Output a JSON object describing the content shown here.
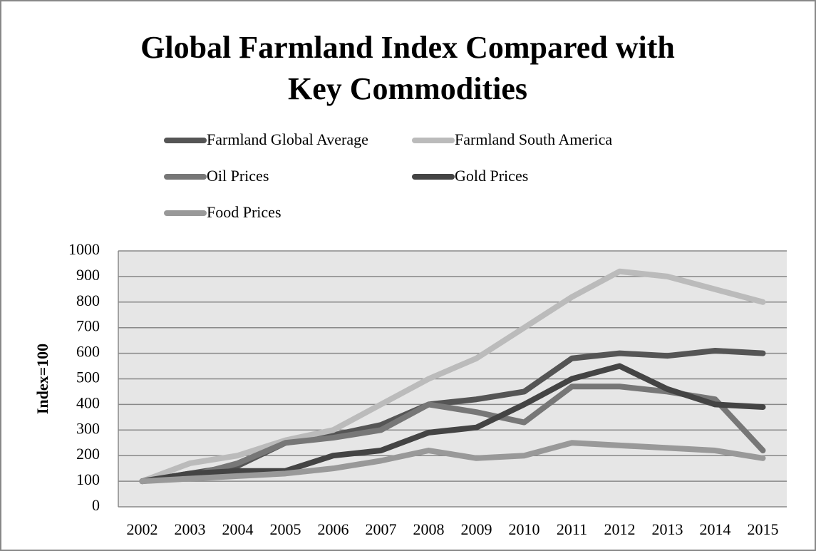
{
  "chart_data": {
    "type": "line",
    "title": "Global Farmland Index Compared with Key Commodities",
    "y_label": "Index=100",
    "categories": [
      "2002",
      "2003",
      "2004",
      "2005",
      "2006",
      "2007",
      "2008",
      "2009",
      "2010",
      "2011",
      "2012",
      "2013",
      "2014",
      "2015"
    ],
    "series": [
      {
        "name": "Farmland Global Average",
        "color": "#555555",
        "values": [
          100,
          130,
          160,
          250,
          280,
          320,
          400,
          420,
          450,
          580,
          600,
          590,
          610,
          600
        ]
      },
      {
        "name": "Farmland South America",
        "color": "#bbbbbb",
        "values": [
          100,
          170,
          200,
          260,
          300,
          400,
          500,
          580,
          700,
          820,
          920,
          900,
          850,
          800
        ]
      },
      {
        "name": "Oil Prices",
        "color": "#777777",
        "values": [
          100,
          120,
          170,
          250,
          270,
          300,
          400,
          370,
          330,
          470,
          470,
          450,
          420,
          220
        ]
      },
      {
        "name": "Gold Prices",
        "color": "#444444",
        "values": [
          100,
          130,
          140,
          140,
          200,
          220,
          290,
          310,
          400,
          500,
          550,
          460,
          400,
          390
        ]
      },
      {
        "name": "Food Prices",
        "color": "#999999",
        "values": [
          100,
          110,
          120,
          130,
          150,
          180,
          220,
          190,
          200,
          250,
          240,
          230,
          220,
          190
        ]
      }
    ],
    "ylim": [
      0,
      1000
    ],
    "yticks": [
      0,
      100,
      200,
      300,
      400,
      500,
      600,
      700,
      800,
      900,
      1000
    ],
    "grid": true,
    "legend": "top"
  }
}
